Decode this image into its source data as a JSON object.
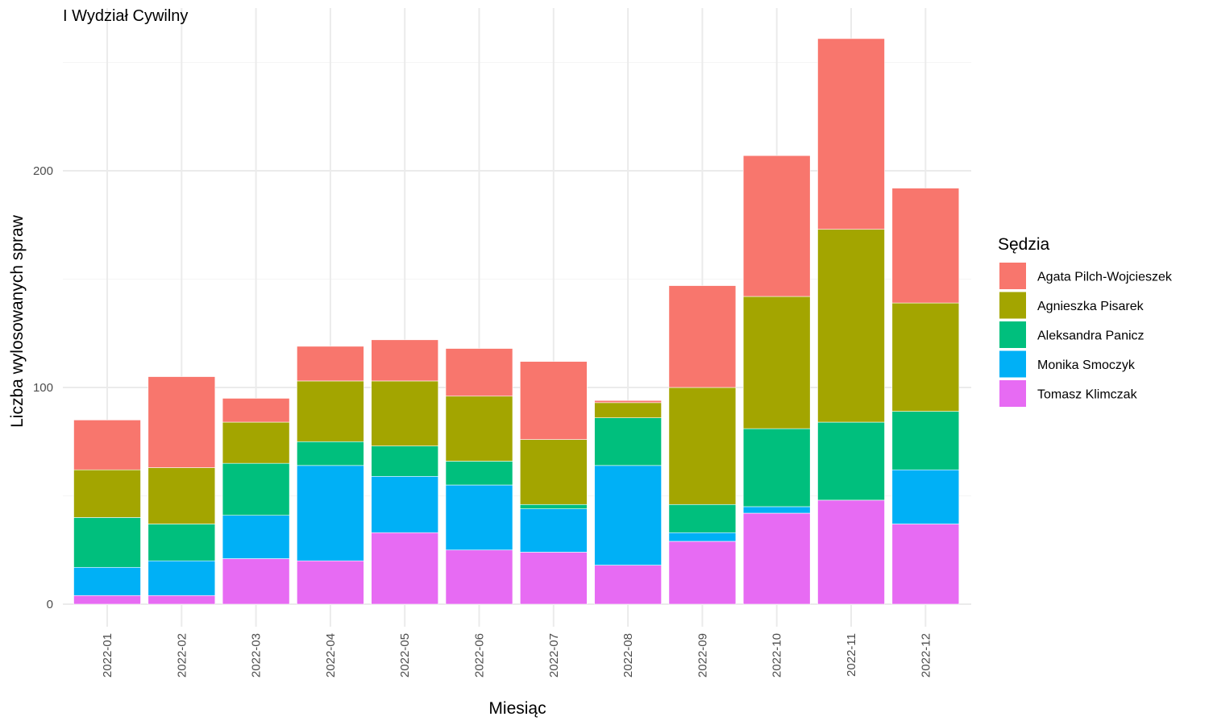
{
  "chart_data": {
    "type": "bar",
    "stacked": true,
    "title": "I Wydział Cywilny",
    "xlabel": "Miesiąc",
    "ylabel": "Liczba wylosowanych spraw",
    "ylim": [
      -10,
      262
    ],
    "yticks": [
      0,
      100,
      200
    ],
    "grid": true,
    "legend": {
      "title": "Sędzia",
      "position": "right"
    },
    "categories": [
      "2022-01",
      "2022-02",
      "2022-03",
      "2022-04",
      "2022-05",
      "2022-06",
      "2022-07",
      "2022-08",
      "2022-09",
      "2022-10",
      "2022-11",
      "2022-12"
    ],
    "series": [
      {
        "name": "Agata Pilch-Wojcieszek",
        "color": "#F8766D",
        "values": [
          23,
          42,
          11,
          16,
          19,
          22,
          36,
          1,
          47,
          65,
          88,
          53
        ]
      },
      {
        "name": "Agnieszka Pisarek",
        "color": "#A3A500",
        "values": [
          22,
          26,
          19,
          28,
          30,
          30,
          30,
          7,
          54,
          61,
          89,
          50
        ]
      },
      {
        "name": "Aleksandra Panicz",
        "color": "#00BF7D",
        "values": [
          23,
          17,
          24,
          11,
          14,
          11,
          2,
          22,
          13,
          36,
          36,
          27
        ]
      },
      {
        "name": "Monika Smoczyk",
        "color": "#00B0F6",
        "values": [
          13,
          16,
          20,
          44,
          26,
          30,
          20,
          46,
          4,
          3,
          0,
          25
        ]
      },
      {
        "name": "Tomasz Klimczak",
        "color": "#E76BF3",
        "values": [
          4,
          4,
          21,
          20,
          33,
          25,
          24,
          18,
          29,
          42,
          48,
          37
        ]
      }
    ]
  }
}
